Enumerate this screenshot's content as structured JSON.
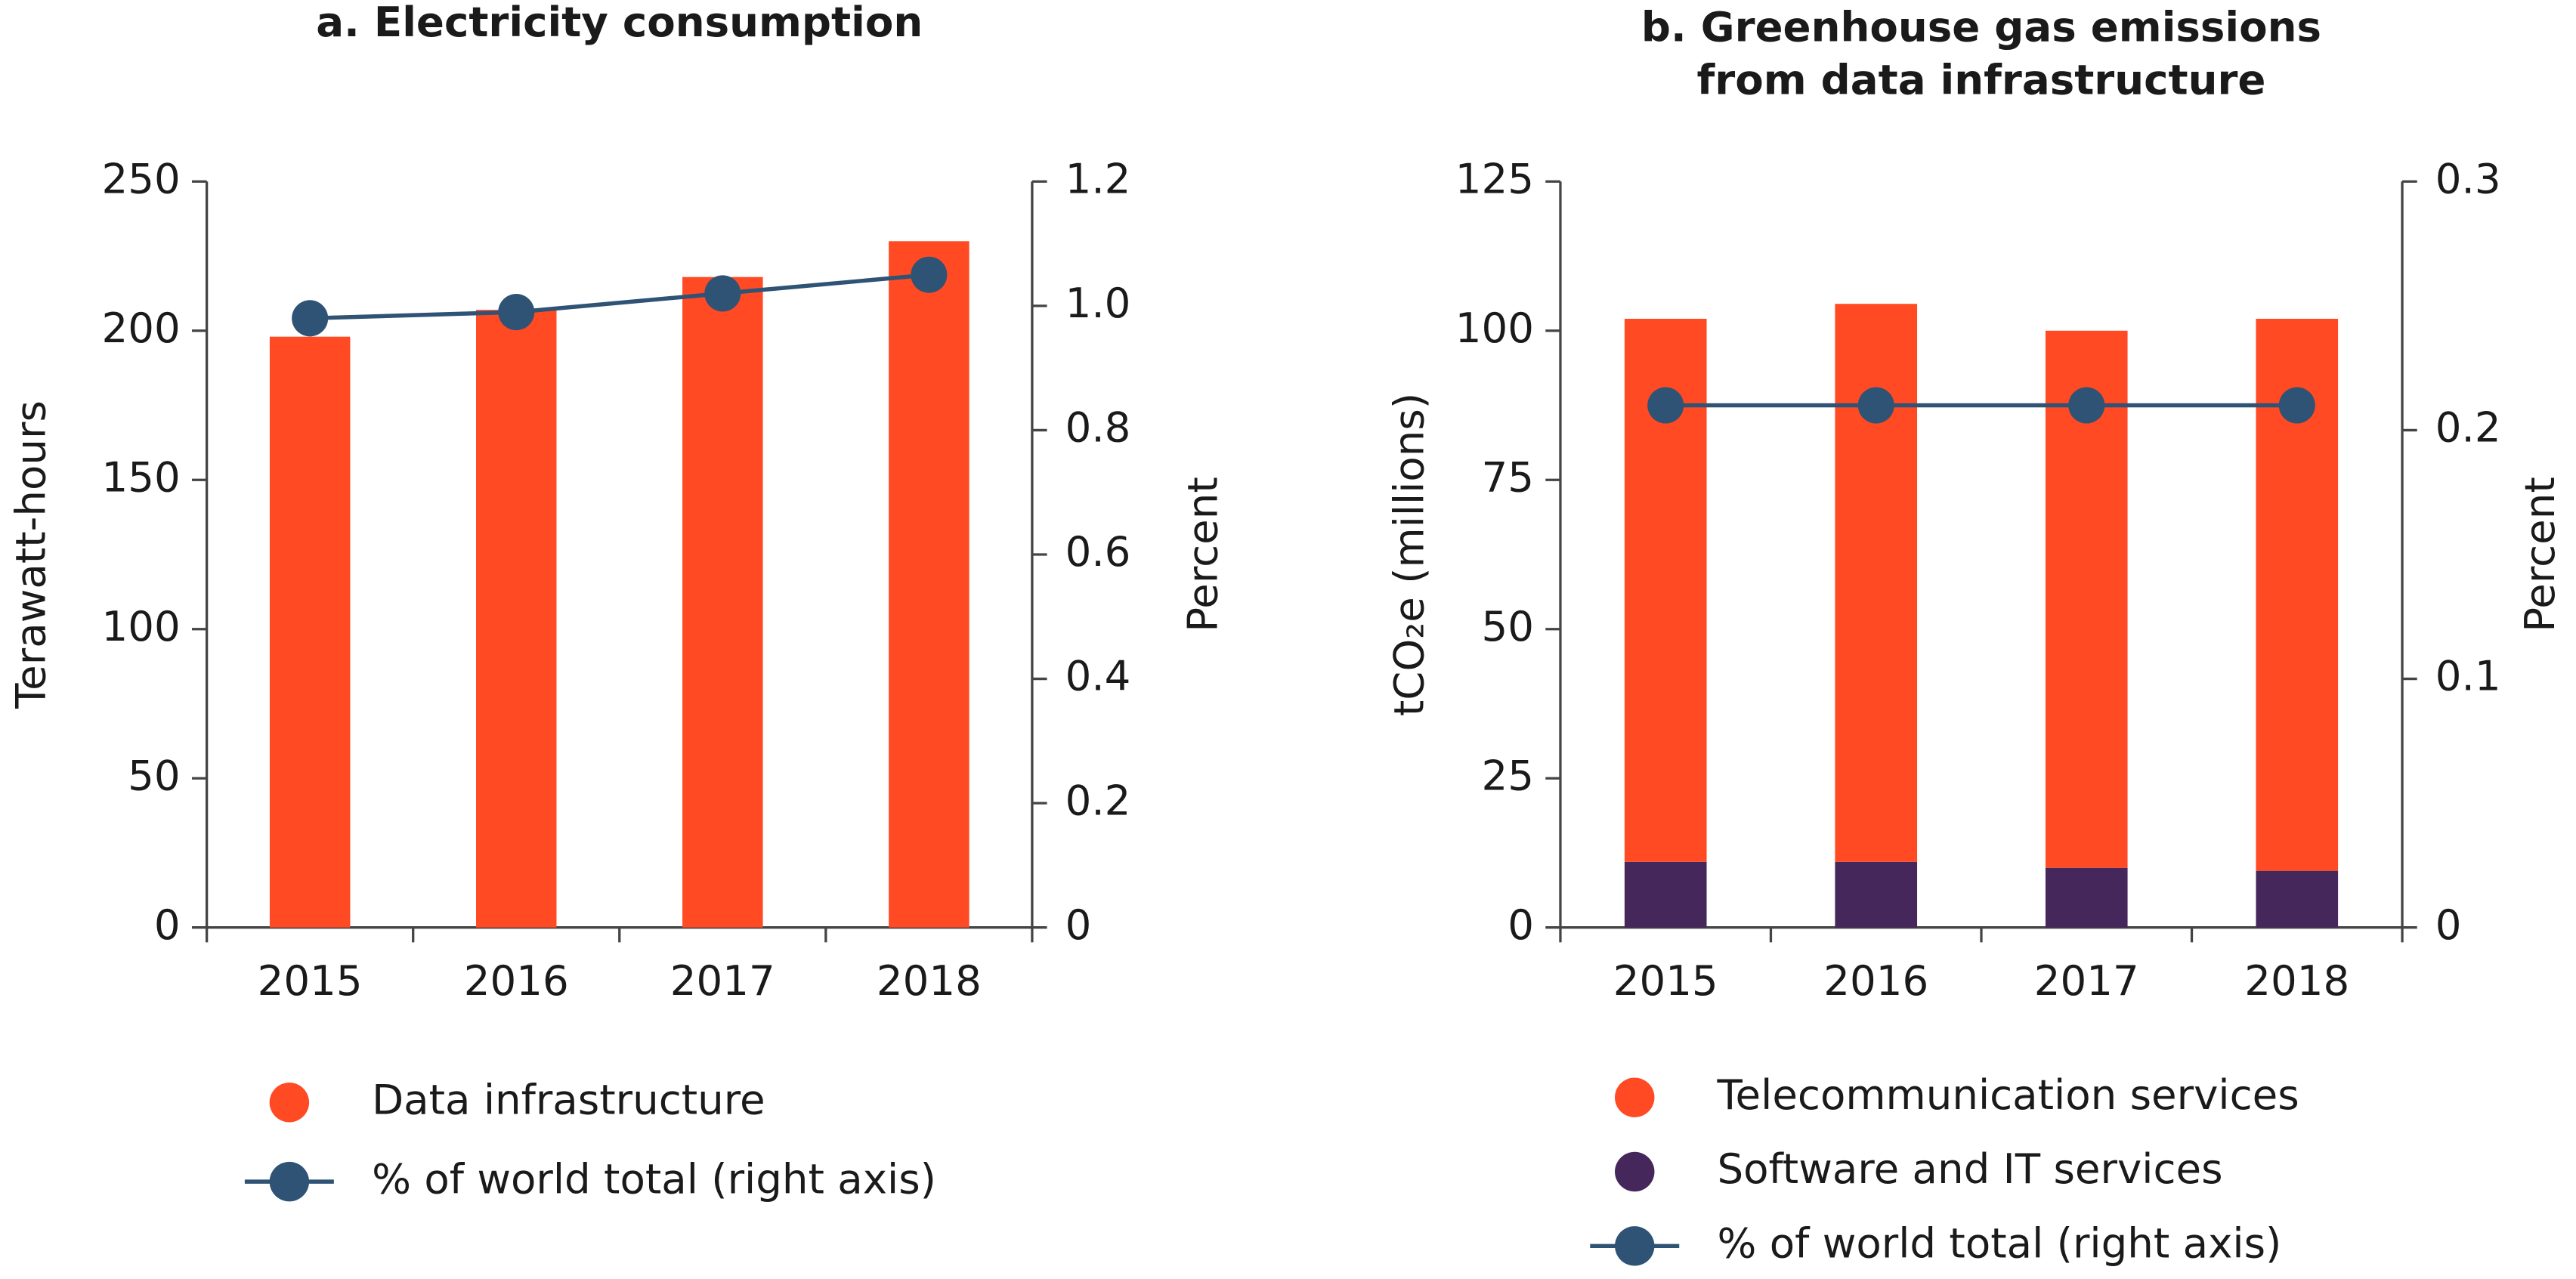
{
  "chart_data": [
    {
      "type": "bar",
      "title": "a. Electricity consumption",
      "y_label": "Terawatt-hours",
      "y2_label": "Percent",
      "categories": [
        "2015",
        "2016",
        "2017",
        "2018"
      ],
      "series": [
        {
          "name": "Data infrastructure",
          "type": "bar",
          "color": "#ff4a24",
          "values": [
            198,
            207,
            218,
            230
          ]
        },
        {
          "name": "% of world total (right axis)",
          "type": "line",
          "axis": "y2",
          "color": "#2f5375",
          "values": [
            0.98,
            0.99,
            1.02,
            1.05
          ]
        }
      ],
      "ylim": [
        0,
        250
      ],
      "yticks": [
        0,
        50,
        100,
        150,
        200,
        250
      ],
      "y2lim": [
        0,
        1.2
      ],
      "y2ticks": [
        0,
        0.2,
        0.4,
        0.6,
        0.8,
        {
          "value": 1,
          "label": "1.0"
        },
        1.2
      ],
      "grid": false,
      "legend": "bottom"
    },
    {
      "type": "stacked_bar",
      "title": [
        "b. Greenhouse gas emissions",
        "from data infrastructure"
      ],
      "y_label": "tCO₂e (millions)",
      "y2_label": "Percent",
      "categories": [
        "2015",
        "2016",
        "2017",
        "2018"
      ],
      "series": [
        {
          "name": "Telecommunication services",
          "type": "bar",
          "color": "#ff4a24",
          "values": [
            91,
            93.5,
            90,
            92.5
          ]
        },
        {
          "name": "Software and IT services",
          "type": "bar",
          "color": "#45275c",
          "values": [
            11,
            11,
            10,
            9.5
          ]
        },
        {
          "name": "% of world total (right axis)",
          "type": "line",
          "axis": "y2",
          "color": "#2f5375",
          "values": [
            0.21,
            0.21,
            0.21,
            0.21
          ]
        }
      ],
      "ylim": [
        0,
        125
      ],
      "yticks": [
        0,
        25,
        50,
        75,
        100,
        125
      ],
      "y2lim": [
        0,
        0.3
      ],
      "y2ticks": [
        0,
        0.1,
        0.2,
        0.3
      ],
      "grid": false,
      "legend": "bottom"
    }
  ]
}
